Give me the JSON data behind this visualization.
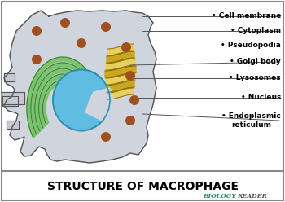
{
  "title": "STRUCTURE OF MACROPHAGE",
  "watermark": "BIOLOGY READER",
  "watermark_color_biology": "#2e8b57",
  "watermark_color_reader": "#555555",
  "labels": [
    "Cell membrane",
    "Cytoplasm",
    "Pseudopodia",
    "Golgi body",
    "Lysosomes",
    "Nucleus",
    "Endoplasmic\nreticulum"
  ],
  "bg_color": "#ffffff",
  "cell_color": "#d0d4dc",
  "cell_edge": "#555555",
  "lyso_color": "#a05020",
  "nucleus_color": "#60bce0",
  "nucleus_edge": "#3090b0",
  "er_color": "#70c060",
  "er_edge": "#3a7a30",
  "golgi_color1": "#c8a820",
  "golgi_color2": "#e8d060",
  "title_fontsize": 10,
  "label_fontsize": 6.5
}
